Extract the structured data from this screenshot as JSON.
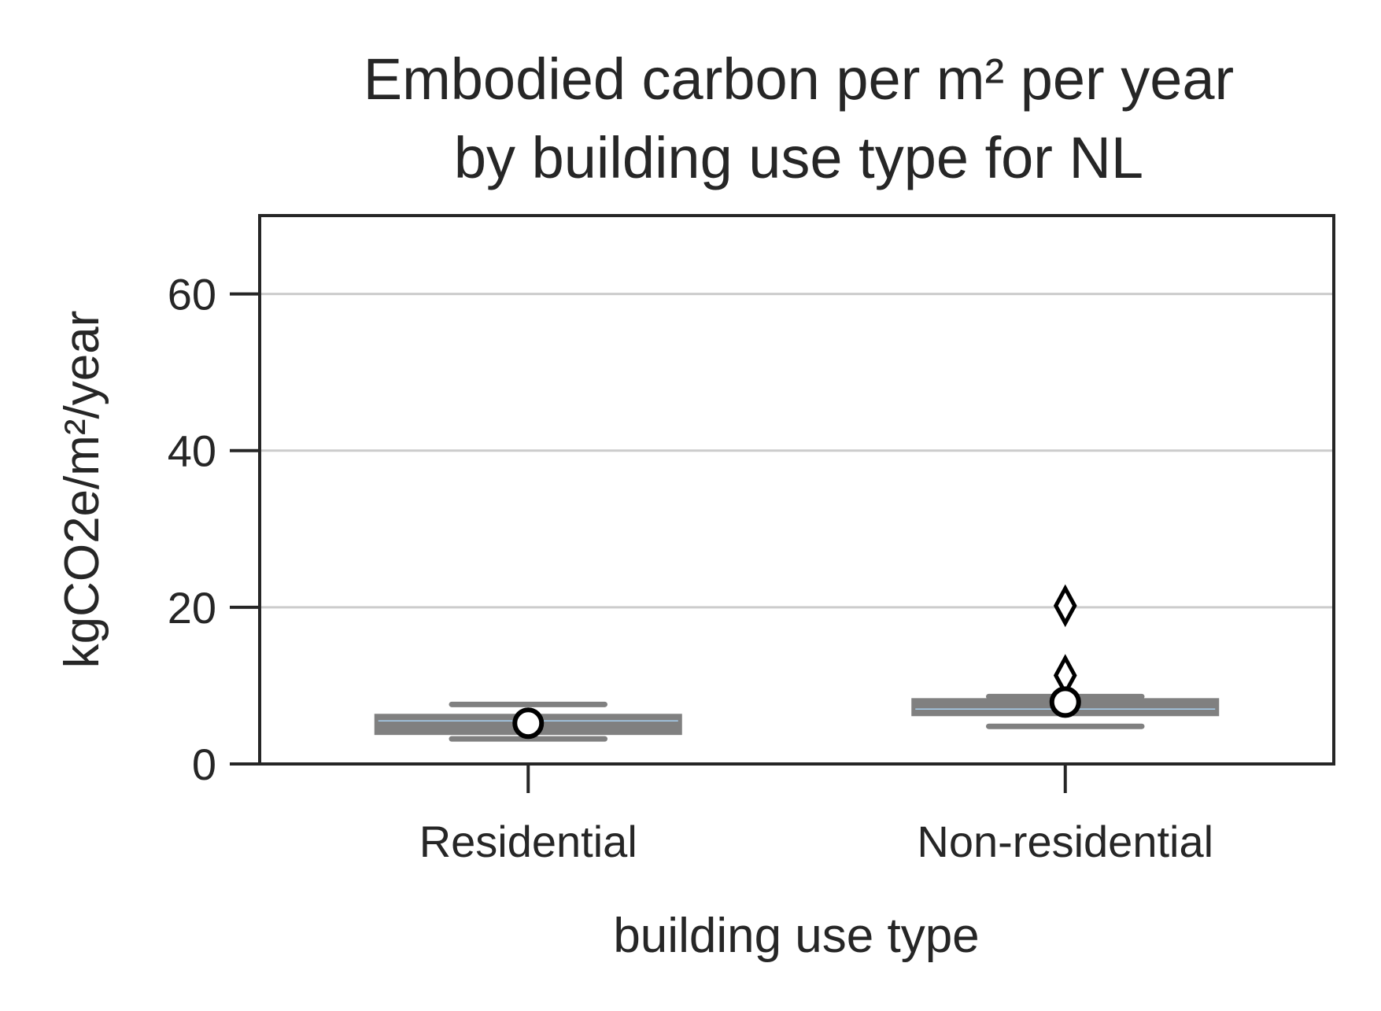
{
  "chart_data": {
    "type": "box",
    "title_lines": [
      "Embodied carbon per m² per year",
      "by building use type for NL"
    ],
    "xlabel": "building use type",
    "ylabel": "kgCO2e/m²/year",
    "ylim": [
      0,
      70
    ],
    "yticks": [
      0,
      20,
      40,
      60
    ],
    "ytick_labels": [
      "0",
      "20",
      "40",
      "60"
    ],
    "grid": "horizontal",
    "categories": [
      "Residential",
      "Non-residential"
    ],
    "boxes": [
      {
        "category": "Residential",
        "q1": 3.8,
        "median": 5.5,
        "q3": 6.3,
        "whisker_low": 3.2,
        "whisker_high": 7.6,
        "mean": 5.2,
        "outliers": []
      },
      {
        "category": "Non-residential",
        "q1": 6.2,
        "median": 7.0,
        "q3": 8.3,
        "whisker_low": 4.8,
        "whisker_high": 8.6,
        "mean": 7.9,
        "outliers": [
          20.2,
          11.3
        ]
      }
    ],
    "colors": {
      "box": "#808080",
      "median": "#a8d0f0",
      "grid": "#cccccc",
      "axis": "#262626"
    }
  }
}
